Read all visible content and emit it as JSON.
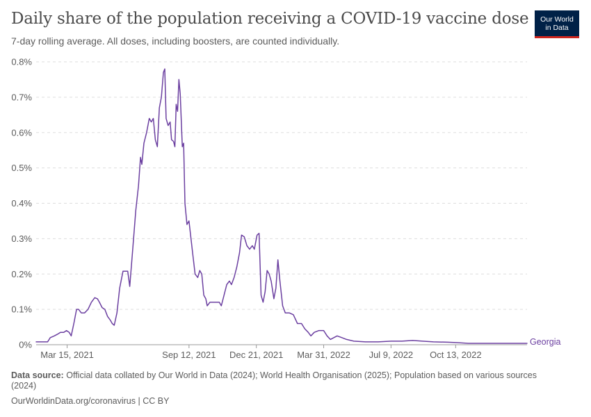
{
  "header": {
    "title": "Daily share of the population receiving a COVID-19 vaccine dose",
    "subtitle": "7-day rolling average. All doses, including boosters, are counted individually."
  },
  "logo": {
    "line1": "Our World",
    "line2": "in Data",
    "bg_color": "#002147",
    "accent_color": "#ce261e"
  },
  "footer": {
    "source_label": "Data source:",
    "source_text": "Official data collated by Our World in Data (2024); World Health Organisation (2025); Population based on various sources (2024)",
    "link_text": "OurWorldinData.org/coronavirus | CC BY"
  },
  "chart_data": {
    "type": "line",
    "title": "Daily share of the population receiving a COVID-19 vaccine dose",
    "subtitle": "7-day rolling average. All doses, including boosters, are counted individually.",
    "xlabel": "",
    "ylabel": "",
    "x_range": [
      "2021-01-28",
      "2023-01-27"
    ],
    "ylim": [
      0,
      0.8
    ],
    "grid": true,
    "line_color": "#6b3fa0",
    "y_ticks": [
      {
        "value": 0,
        "label": "0%"
      },
      {
        "value": 0.1,
        "label": "0.1%"
      },
      {
        "value": 0.2,
        "label": "0.2%"
      },
      {
        "value": 0.3,
        "label": "0.3%"
      },
      {
        "value": 0.4,
        "label": "0.4%"
      },
      {
        "value": 0.5,
        "label": "0.5%"
      },
      {
        "value": 0.6,
        "label": "0.6%"
      },
      {
        "value": 0.7,
        "label": "0.7%"
      },
      {
        "value": 0.8,
        "label": "0.8%"
      }
    ],
    "x_ticks": [
      {
        "date": "2021-03-15",
        "label": "Mar 15, 2021"
      },
      {
        "date": "2021-09-12",
        "label": "Sep 12, 2021"
      },
      {
        "date": "2021-12-21",
        "label": "Dec 21, 2021"
      },
      {
        "date": "2022-03-31",
        "label": "Mar 31, 2022"
      },
      {
        "date": "2022-07-09",
        "label": "Jul 9, 2022"
      },
      {
        "date": "2022-10-13",
        "label": "Oct 13, 2022"
      }
    ],
    "series": [
      {
        "name": "Georgia",
        "points": [
          [
            "2021-01-28",
            0.008
          ],
          [
            "2021-02-01",
            0.008
          ],
          [
            "2021-02-10",
            0.008
          ],
          [
            "2021-02-14",
            0.008
          ],
          [
            "2021-02-18",
            0.02
          ],
          [
            "2021-02-24",
            0.025
          ],
          [
            "2021-03-01",
            0.03
          ],
          [
            "2021-03-05",
            0.035
          ],
          [
            "2021-03-10",
            0.035
          ],
          [
            "2021-03-14",
            0.04
          ],
          [
            "2021-03-18",
            0.035
          ],
          [
            "2021-03-21",
            0.025
          ],
          [
            "2021-03-25",
            0.06
          ],
          [
            "2021-03-29",
            0.1
          ],
          [
            "2021-04-01",
            0.1
          ],
          [
            "2021-04-05",
            0.09
          ],
          [
            "2021-04-10",
            0.09
          ],
          [
            "2021-04-15",
            0.1
          ],
          [
            "2021-04-20",
            0.12
          ],
          [
            "2021-04-25",
            0.133
          ],
          [
            "2021-04-29",
            0.13
          ],
          [
            "2021-05-02",
            0.12
          ],
          [
            "2021-05-06",
            0.105
          ],
          [
            "2021-05-10",
            0.1
          ],
          [
            "2021-05-14",
            0.08
          ],
          [
            "2021-05-18",
            0.07
          ],
          [
            "2021-05-21",
            0.06
          ],
          [
            "2021-05-24",
            0.055
          ],
          [
            "2021-05-28",
            0.09
          ],
          [
            "2021-06-01",
            0.16
          ],
          [
            "2021-06-06",
            0.208
          ],
          [
            "2021-06-13",
            0.208
          ],
          [
            "2021-06-16",
            0.165
          ],
          [
            "2021-06-20",
            0.26
          ],
          [
            "2021-06-25",
            0.38
          ],
          [
            "2021-06-29",
            0.45
          ],
          [
            "2021-07-02",
            0.53
          ],
          [
            "2021-07-04",
            0.51
          ],
          [
            "2021-07-07",
            0.57
          ],
          [
            "2021-07-11",
            0.6
          ],
          [
            "2021-07-15",
            0.64
          ],
          [
            "2021-07-18",
            0.63
          ],
          [
            "2021-07-21",
            0.64
          ],
          [
            "2021-07-24",
            0.58
          ],
          [
            "2021-07-27",
            0.56
          ],
          [
            "2021-07-30",
            0.67
          ],
          [
            "2021-08-02",
            0.7
          ],
          [
            "2021-08-05",
            0.77
          ],
          [
            "2021-08-07",
            0.78
          ],
          [
            "2021-08-09",
            0.64
          ],
          [
            "2021-08-12",
            0.62
          ],
          [
            "2021-08-15",
            0.63
          ],
          [
            "2021-08-17",
            0.58
          ],
          [
            "2021-08-20",
            0.575
          ],
          [
            "2021-08-22",
            0.56
          ],
          [
            "2021-08-24",
            0.68
          ],
          [
            "2021-08-26",
            0.66
          ],
          [
            "2021-08-28",
            0.75
          ],
          [
            "2021-08-30",
            0.71
          ],
          [
            "2021-09-02",
            0.56
          ],
          [
            "2021-09-04",
            0.57
          ],
          [
            "2021-09-06",
            0.4
          ],
          [
            "2021-09-09",
            0.34
          ],
          [
            "2021-09-12",
            0.35
          ],
          [
            "2021-09-15",
            0.3
          ],
          [
            "2021-09-18",
            0.25
          ],
          [
            "2021-09-21",
            0.2
          ],
          [
            "2021-09-25",
            0.19
          ],
          [
            "2021-09-28",
            0.21
          ],
          [
            "2021-10-01",
            0.2
          ],
          [
            "2021-10-04",
            0.14
          ],
          [
            "2021-10-07",
            0.13
          ],
          [
            "2021-10-09",
            0.11
          ],
          [
            "2021-10-13",
            0.12
          ],
          [
            "2021-10-20",
            0.12
          ],
          [
            "2021-10-27",
            0.12
          ],
          [
            "2021-10-30",
            0.11
          ],
          [
            "2021-11-03",
            0.14
          ],
          [
            "2021-11-07",
            0.17
          ],
          [
            "2021-11-11",
            0.18
          ],
          [
            "2021-11-14",
            0.17
          ],
          [
            "2021-11-18",
            0.19
          ],
          [
            "2021-11-22",
            0.22
          ],
          [
            "2021-11-26",
            0.26
          ],
          [
            "2021-11-29",
            0.31
          ],
          [
            "2021-12-03",
            0.305
          ],
          [
            "2021-12-07",
            0.28
          ],
          [
            "2021-12-11",
            0.27
          ],
          [
            "2021-12-15",
            0.28
          ],
          [
            "2021-12-18",
            0.27
          ],
          [
            "2021-12-22",
            0.31
          ],
          [
            "2021-12-25",
            0.315
          ],
          [
            "2021-12-28",
            0.14
          ],
          [
            "2021-12-31",
            0.12
          ],
          [
            "2022-01-03",
            0.15
          ],
          [
            "2022-01-06",
            0.21
          ],
          [
            "2022-01-09",
            0.2
          ],
          [
            "2022-01-12",
            0.18
          ],
          [
            "2022-01-16",
            0.13
          ],
          [
            "2022-01-19",
            0.16
          ],
          [
            "2022-01-22",
            0.24
          ],
          [
            "2022-01-25",
            0.18
          ],
          [
            "2022-01-29",
            0.11
          ],
          [
            "2022-02-02",
            0.09
          ],
          [
            "2022-02-08",
            0.09
          ],
          [
            "2022-02-14",
            0.085
          ],
          [
            "2022-02-20",
            0.06
          ],
          [
            "2022-02-26",
            0.06
          ],
          [
            "2022-03-03",
            0.045
          ],
          [
            "2022-03-08",
            0.035
          ],
          [
            "2022-03-12",
            0.025
          ],
          [
            "2022-03-17",
            0.035
          ],
          [
            "2022-03-24",
            0.04
          ],
          [
            "2022-03-31",
            0.04
          ],
          [
            "2022-04-05",
            0.025
          ],
          [
            "2022-04-10",
            0.015
          ],
          [
            "2022-04-15",
            0.02
          ],
          [
            "2022-04-20",
            0.025
          ],
          [
            "2022-04-27",
            0.02
          ],
          [
            "2022-05-04",
            0.015
          ],
          [
            "2022-05-15",
            0.01
          ],
          [
            "2022-06-01",
            0.008
          ],
          [
            "2022-06-20",
            0.008
          ],
          [
            "2022-07-09",
            0.01
          ],
          [
            "2022-07-25",
            0.01
          ],
          [
            "2022-08-10",
            0.012
          ],
          [
            "2022-08-25",
            0.01
          ],
          [
            "2022-09-10",
            0.008
          ],
          [
            "2022-10-01",
            0.007
          ],
          [
            "2022-10-13",
            0.006
          ],
          [
            "2022-11-01",
            0.004
          ],
          [
            "2022-11-20",
            0.004
          ],
          [
            "2022-12-10",
            0.004
          ],
          [
            "2023-01-05",
            0.004
          ],
          [
            "2023-01-27",
            0.004
          ]
        ]
      }
    ]
  }
}
